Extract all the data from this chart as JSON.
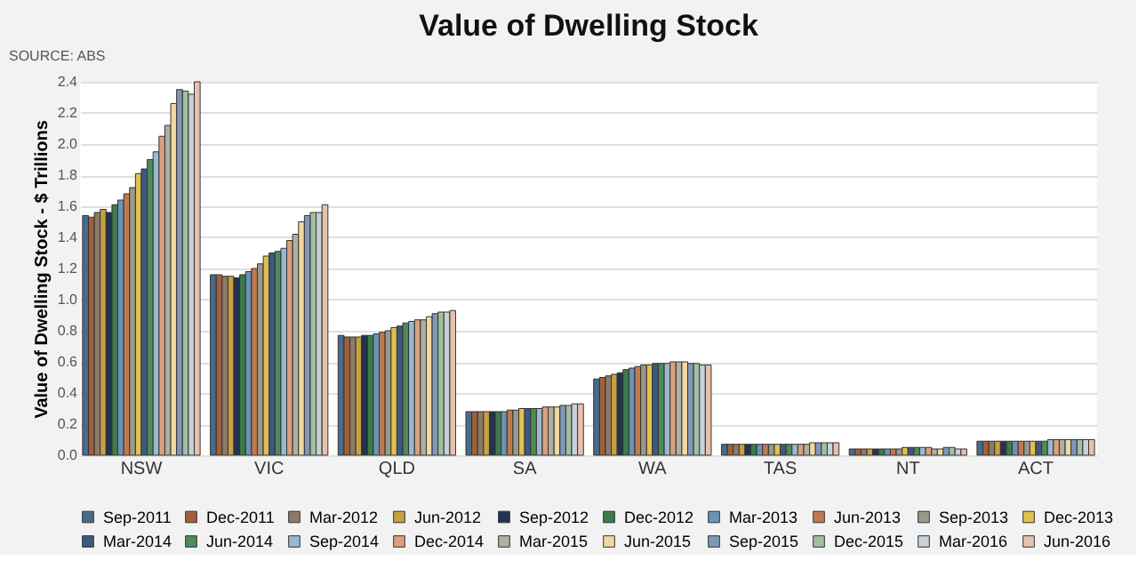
{
  "chart_data": {
    "type": "bar",
    "title": "Value of Dwelling Stock",
    "ylabel": "Value of Dwelling Stock - $ Trillions",
    "annotations": [
      "SOURCE: ABS"
    ],
    "categories": [
      "NSW",
      "VIC",
      "QLD",
      "SA",
      "WA",
      "TAS",
      "NT",
      "ACT"
    ],
    "ylim": [
      0,
      2.4
    ],
    "yticks": [
      {
        "value": 0,
        "label": "0.0"
      },
      0.2,
      0.4,
      0.6,
      0.8,
      {
        "value": 1,
        "label": "1.0"
      },
      1.2,
      1.4,
      1.6,
      1.8,
      {
        "value": 2,
        "label": "2.0"
      },
      2.2,
      2.4
    ],
    "grid": "y",
    "legend": "bottom",
    "series": [
      {
        "name": "Sep-2011",
        "color": "#4a6b8a",
        "values": [
          1.54,
          1.16,
          0.77,
          0.28,
          0.49,
          0.07,
          0.04,
          0.09
        ]
      },
      {
        "name": "Dec-2011",
        "color": "#a0603a",
        "values": [
          1.53,
          1.16,
          0.76,
          0.28,
          0.5,
          0.07,
          0.04,
          0.09
        ]
      },
      {
        "name": "Mar-2012",
        "color": "#8c7a6a",
        "values": [
          1.56,
          1.15,
          0.76,
          0.28,
          0.51,
          0.07,
          0.04,
          0.09
        ]
      },
      {
        "name": "Jun-2012",
        "color": "#c9a040",
        "values": [
          1.58,
          1.15,
          0.76,
          0.28,
          0.52,
          0.07,
          0.04,
          0.09
        ]
      },
      {
        "name": "Sep-2012",
        "color": "#1f3550",
        "values": [
          1.56,
          1.14,
          0.77,
          0.28,
          0.53,
          0.07,
          0.04,
          0.09
        ]
      },
      {
        "name": "Dec-2012",
        "color": "#3e7a4a",
        "values": [
          1.61,
          1.16,
          0.77,
          0.28,
          0.55,
          0.07,
          0.04,
          0.09
        ]
      },
      {
        "name": "Mar-2013",
        "color": "#6a93b8",
        "values": [
          1.64,
          1.18,
          0.78,
          0.28,
          0.56,
          0.07,
          0.04,
          0.09
        ]
      },
      {
        "name": "Jun-2013",
        "color": "#c07a50",
        "values": [
          1.68,
          1.2,
          0.79,
          0.29,
          0.57,
          0.07,
          0.04,
          0.09
        ]
      },
      {
        "name": "Sep-2013",
        "color": "#9a9a8a",
        "values": [
          1.72,
          1.23,
          0.8,
          0.29,
          0.58,
          0.07,
          0.04,
          0.09
        ]
      },
      {
        "name": "Dec-2013",
        "color": "#e0c050",
        "values": [
          1.81,
          1.28,
          0.82,
          0.3,
          0.58,
          0.07,
          0.05,
          0.09
        ]
      },
      {
        "name": "Mar-2014",
        "color": "#3a5a80",
        "values": [
          1.84,
          1.3,
          0.83,
          0.3,
          0.59,
          0.07,
          0.05,
          0.09
        ]
      },
      {
        "name": "Jun-2014",
        "color": "#4f8a5a",
        "values": [
          1.9,
          1.31,
          0.85,
          0.3,
          0.59,
          0.07,
          0.05,
          0.09
        ]
      },
      {
        "name": "Sep-2014",
        "color": "#9ab8d0",
        "values": [
          1.95,
          1.33,
          0.86,
          0.3,
          0.59,
          0.07,
          0.05,
          0.1
        ]
      },
      {
        "name": "Dec-2014",
        "color": "#d8a080",
        "values": [
          2.05,
          1.38,
          0.87,
          0.31,
          0.6,
          0.07,
          0.05,
          0.1
        ]
      },
      {
        "name": "Mar-2015",
        "color": "#b0b0a0",
        "values": [
          2.12,
          1.42,
          0.87,
          0.31,
          0.6,
          0.07,
          0.04,
          0.1
        ]
      },
      {
        "name": "Jun-2015",
        "color": "#f0d8a0",
        "values": [
          2.26,
          1.5,
          0.89,
          0.31,
          0.6,
          0.08,
          0.04,
          0.1
        ]
      },
      {
        "name": "Sep-2015",
        "color": "#8098b8",
        "values": [
          2.35,
          1.54,
          0.91,
          0.32,
          0.59,
          0.08,
          0.05,
          0.1
        ]
      },
      {
        "name": "Dec-2015",
        "color": "#a0c0a0",
        "values": [
          2.34,
          1.56,
          0.92,
          0.32,
          0.59,
          0.08,
          0.05,
          0.1
        ]
      },
      {
        "name": "Mar-2016",
        "color": "#c8d0d8",
        "values": [
          2.32,
          1.56,
          0.92,
          0.33,
          0.58,
          0.08,
          0.04,
          0.1
        ]
      },
      {
        "name": "Jun-2016",
        "color": "#e8c0b0",
        "values": [
          2.4,
          1.61,
          0.93,
          0.33,
          0.58,
          0.08,
          0.04,
          0.1
        ]
      }
    ]
  }
}
